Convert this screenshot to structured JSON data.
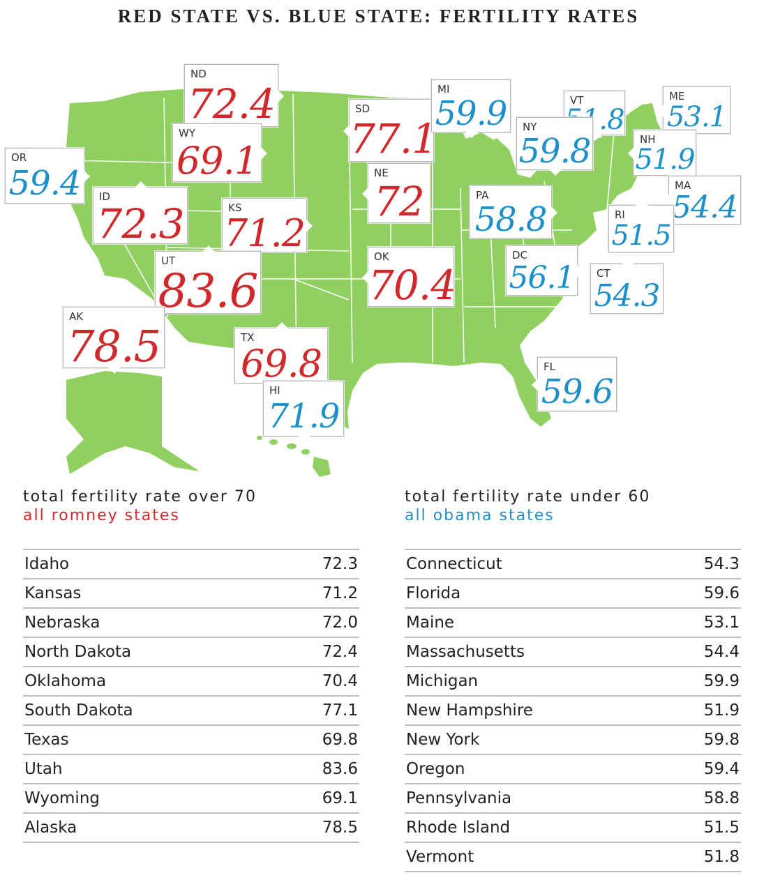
{
  "title": "RED STATE VS. BLUE STATE: FERTILITY RATES",
  "colors": {
    "red": "#d0282b",
    "blue": "#1d8fc9",
    "map_fill": "#8fd061",
    "map_lines": "#ffffff"
  },
  "callouts": [
    {
      "abbr": "ND",
      "value": "72.4",
      "party": "red"
    },
    {
      "abbr": "SD",
      "value": "77.1",
      "party": "red"
    },
    {
      "abbr": "MI",
      "value": "59.9",
      "party": "blue"
    },
    {
      "abbr": "VT",
      "value": "51.8",
      "party": "blue"
    },
    {
      "abbr": "ME",
      "value": "53.1",
      "party": "blue"
    },
    {
      "abbr": "WY",
      "value": "69.1",
      "party": "red"
    },
    {
      "abbr": "OR",
      "value": "59.4",
      "party": "blue"
    },
    {
      "abbr": "NY",
      "value": "59.8",
      "party": "blue"
    },
    {
      "abbr": "NH",
      "value": "51.9",
      "party": "blue"
    },
    {
      "abbr": "NE",
      "value": "72",
      "party": "red"
    },
    {
      "abbr": "MA",
      "value": "54.4",
      "party": "blue"
    },
    {
      "abbr": "ID",
      "value": "72.3",
      "party": "red"
    },
    {
      "abbr": "KS",
      "value": "71.2",
      "party": "red"
    },
    {
      "abbr": "PA",
      "value": "58.8",
      "party": "blue"
    },
    {
      "abbr": "RI",
      "value": "51.5",
      "party": "blue"
    },
    {
      "abbr": "UT",
      "value": "83.6",
      "party": "red"
    },
    {
      "abbr": "OK",
      "value": "70.4",
      "party": "red"
    },
    {
      "abbr": "DC",
      "value": "56.1",
      "party": "blue"
    },
    {
      "abbr": "CT",
      "value": "54.3",
      "party": "blue"
    },
    {
      "abbr": "AK",
      "value": "78.5",
      "party": "red"
    },
    {
      "abbr": "TX",
      "value": "69.8",
      "party": "red"
    },
    {
      "abbr": "HI",
      "value": "71.9",
      "party": "blue"
    },
    {
      "abbr": "FL",
      "value": "59.6",
      "party": "blue"
    }
  ],
  "left_table": {
    "heading": "total fertility rate over 70",
    "subheading": "all romney states",
    "rows": [
      {
        "state": "Idaho",
        "rate": "72.3"
      },
      {
        "state": "Kansas",
        "rate": "71.2"
      },
      {
        "state": "Nebraska",
        "rate": "72.0"
      },
      {
        "state": "North Dakota",
        "rate": "72.4"
      },
      {
        "state": "Oklahoma",
        "rate": "70.4"
      },
      {
        "state": "South Dakota",
        "rate": "77.1"
      },
      {
        "state": "Texas",
        "rate": "69.8"
      },
      {
        "state": "Utah",
        "rate": "83.6"
      },
      {
        "state": "Wyoming",
        "rate": "69.1"
      },
      {
        "state": "Alaska",
        "rate": "78.5"
      }
    ]
  },
  "right_table": {
    "heading": "total fertility rate under 60",
    "subheading": "all obama states",
    "rows": [
      {
        "state": "Connecticut",
        "rate": "54.3"
      },
      {
        "state": "Florida",
        "rate": "59.6"
      },
      {
        "state": "Maine",
        "rate": "53.1"
      },
      {
        "state": "Massachusetts",
        "rate": "54.4"
      },
      {
        "state": "Michigan",
        "rate": "59.9"
      },
      {
        "state": "New Hampshire",
        "rate": "51.9"
      },
      {
        "state": "New York",
        "rate": "59.8"
      },
      {
        "state": "Oregon",
        "rate": "59.4"
      },
      {
        "state": "Pennsylvania",
        "rate": "58.8"
      },
      {
        "state": "Rhode Island",
        "rate": "51.5"
      },
      {
        "state": "Vermont",
        "rate": "51.8"
      }
    ]
  }
}
